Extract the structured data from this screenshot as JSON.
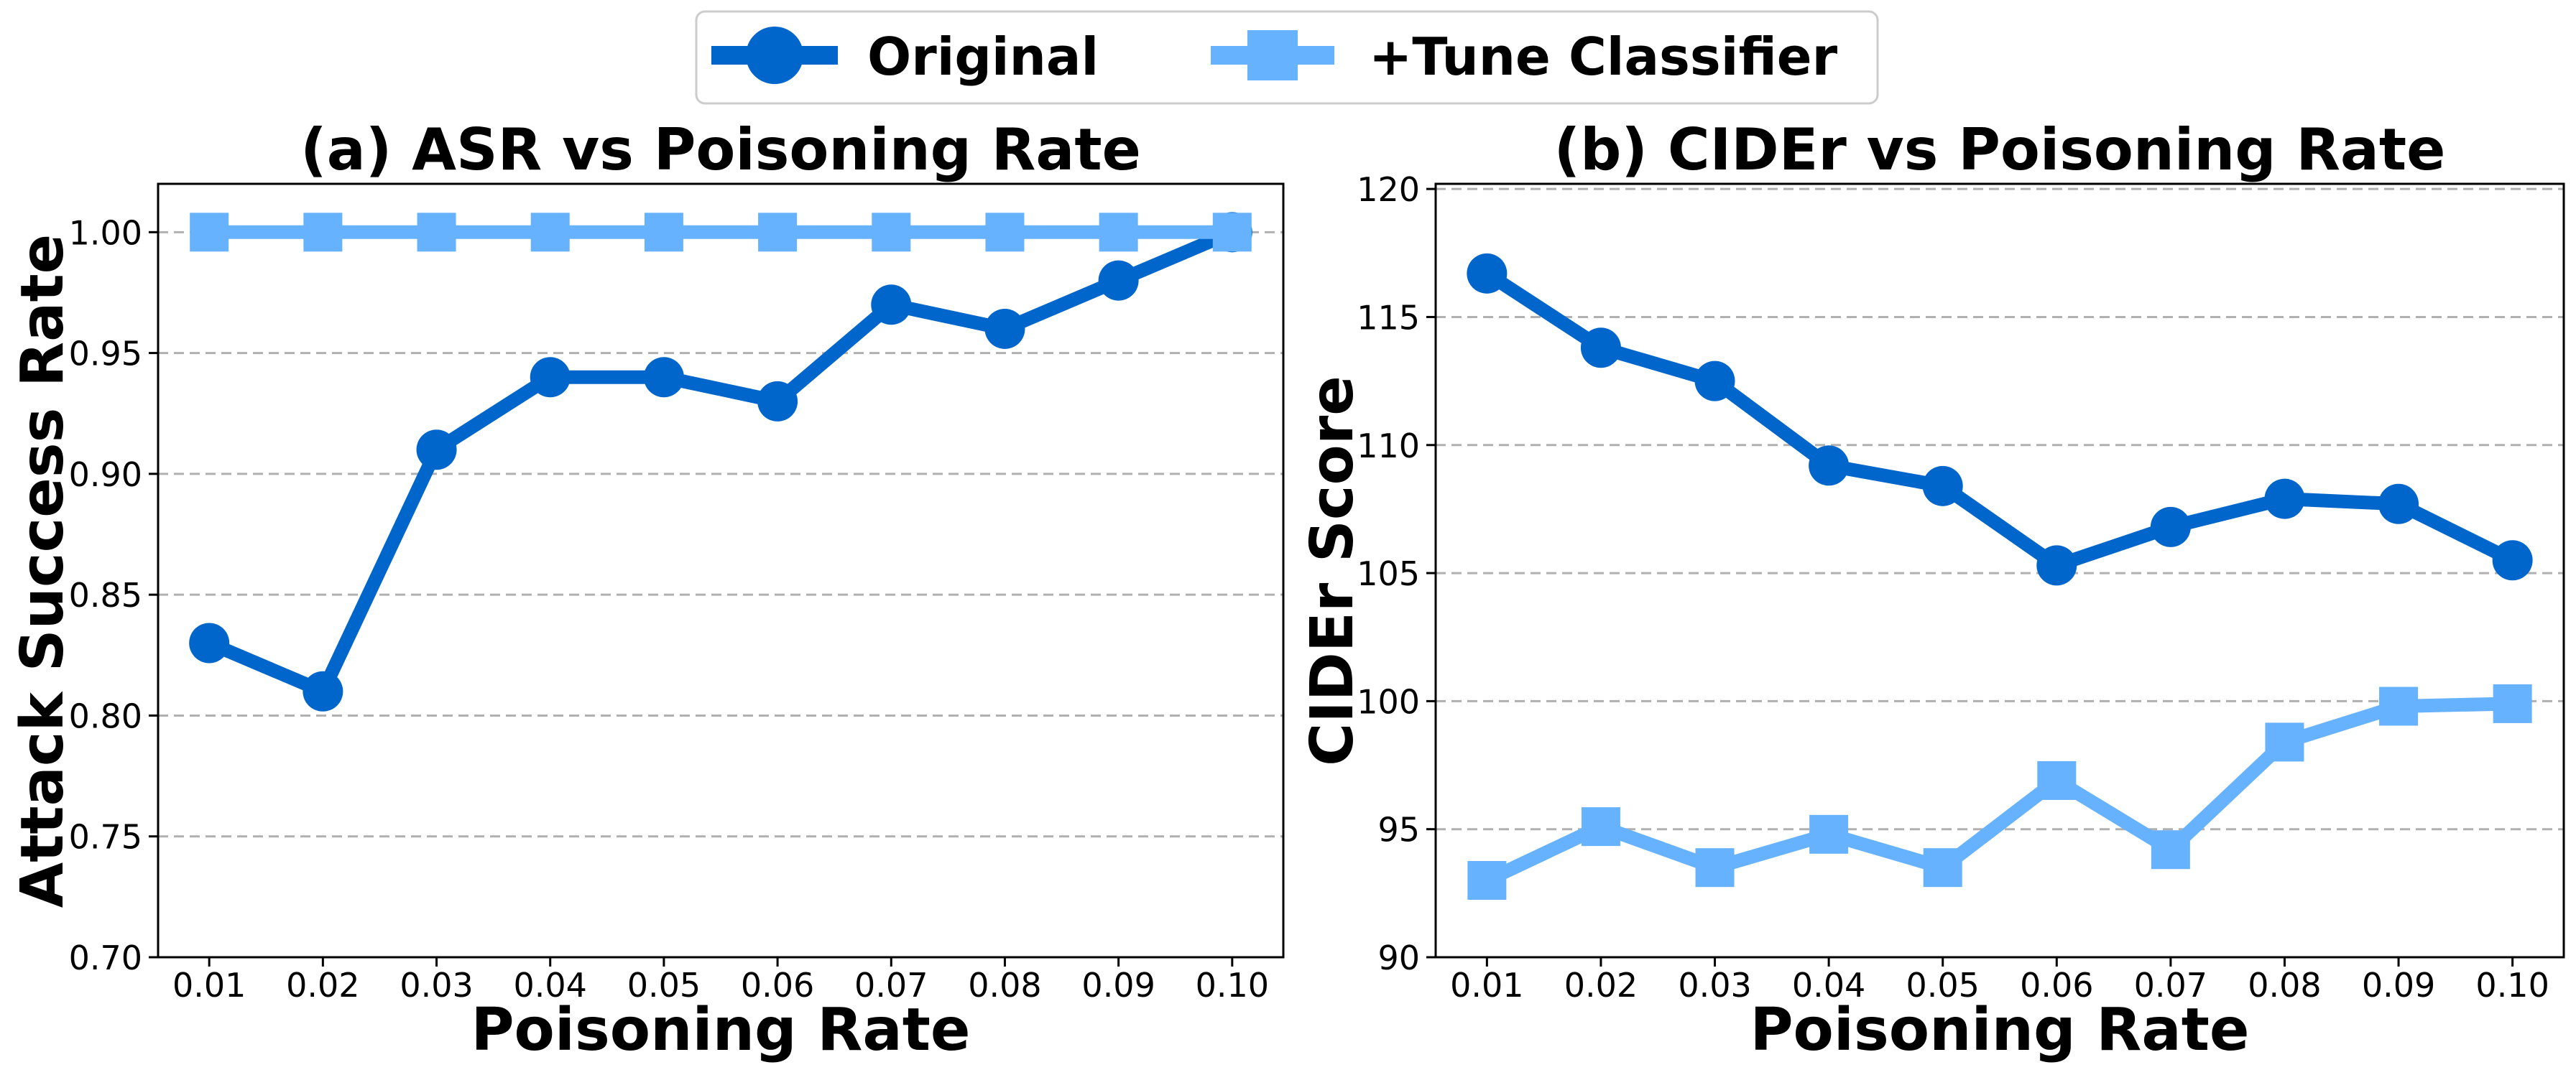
{
  "legend": {
    "placement": "top-center"
  },
  "chart_data": [
    {
      "type": "line",
      "title": "(a) ASR vs Poisoning Rate",
      "xlabel": "Poisoning Rate",
      "ylabel": "Attack Success Rate",
      "x": [
        0.01,
        0.02,
        0.03,
        0.04,
        0.05,
        0.06,
        0.07,
        0.08,
        0.09,
        0.1
      ],
      "xtick_labels": [
        "0.01",
        "0.02",
        "0.03",
        "0.04",
        "0.05",
        "0.06",
        "0.07",
        "0.08",
        "0.09",
        "0.10"
      ],
      "xlim": [
        0.0055,
        0.1045
      ],
      "ylim": [
        0.7,
        1.02
      ],
      "yticks": [
        0.7,
        0.75,
        0.8,
        0.85,
        0.9,
        0.95,
        1.0
      ],
      "ytick_labels": [
        "0.70",
        "0.75",
        "0.80",
        "0.85",
        "0.90",
        "0.95",
        "1.00"
      ],
      "grid": true,
      "series": [
        {
          "name": "Original",
          "marker": "circle",
          "color": "#0066cc",
          "values": [
            0.83,
            0.81,
            0.91,
            0.94,
            0.94,
            0.93,
            0.97,
            0.96,
            0.98,
            1.0
          ]
        },
        {
          "name": "+Tune Classifier",
          "marker": "square",
          "color": "#66b2ff",
          "values": [
            1.0,
            1.0,
            1.0,
            1.0,
            1.0,
            1.0,
            1.0,
            1.0,
            1.0,
            1.0
          ]
        }
      ]
    },
    {
      "type": "line",
      "title": "(b) CIDEr vs Poisoning Rate",
      "xlabel": "Poisoning Rate",
      "ylabel": "CIDEr Score",
      "x": [
        0.01,
        0.02,
        0.03,
        0.04,
        0.05,
        0.06,
        0.07,
        0.08,
        0.09,
        0.1
      ],
      "xtick_labels": [
        "0.01",
        "0.02",
        "0.03",
        "0.04",
        "0.05",
        "0.06",
        "0.07",
        "0.08",
        "0.09",
        "0.10"
      ],
      "xlim": [
        0.0055,
        0.1045
      ],
      "ylim": [
        90,
        120.2
      ],
      "yticks": [
        90,
        95,
        100,
        105,
        110,
        115,
        120
      ],
      "ytick_labels": [
        "90",
        "95",
        "100",
        "105",
        "110",
        "115",
        "120"
      ],
      "grid": true,
      "series": [
        {
          "name": "Original",
          "marker": "circle",
          "color": "#0066cc",
          "values": [
            116.7,
            113.8,
            112.5,
            109.2,
            108.4,
            105.3,
            106.8,
            107.9,
            107.7,
            105.5
          ]
        },
        {
          "name": "+Tune Classifier",
          "marker": "square",
          "color": "#66b2ff",
          "values": [
            93.0,
            95.1,
            93.5,
            94.8,
            93.5,
            96.9,
            94.2,
            98.4,
            99.8,
            99.9
          ]
        }
      ]
    }
  ]
}
